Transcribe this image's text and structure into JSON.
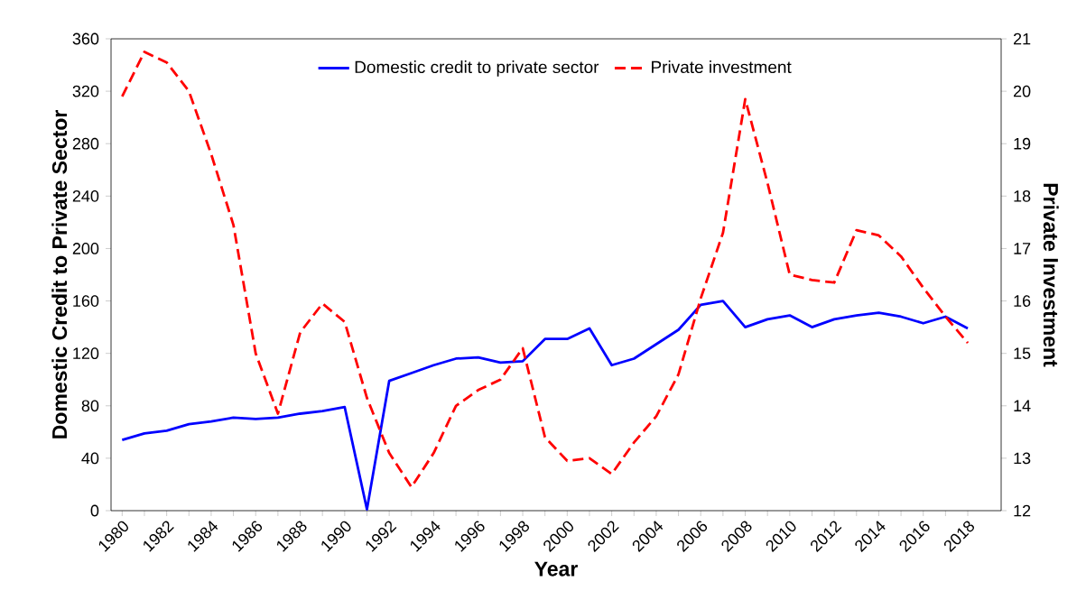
{
  "chart_data": {
    "type": "line",
    "xlabel": "Year",
    "ylabel": "Domestic Credit to Private Sector",
    "y2label": "Private Investment",
    "categories": [
      "1980",
      null,
      "1982",
      null,
      "1984",
      null,
      "1986",
      null,
      "1988",
      null,
      "1990",
      null,
      "1992",
      null,
      "1994",
      null,
      "1996",
      null,
      "1998",
      null,
      "2000",
      null,
      "2002",
      null,
      "2004",
      null,
      "2006",
      null,
      "2008",
      null,
      "2010",
      null,
      "2012",
      null,
      "2014",
      null,
      "2016",
      null,
      "2018"
    ],
    "series": [
      {
        "name": "Domestic credit to private sector",
        "color": "#0000ff",
        "line_style": "solid",
        "values": [
          54,
          59,
          61,
          66,
          68,
          71,
          70,
          71,
          74,
          76,
          79,
          1,
          99,
          105,
          111,
          116,
          117,
          113,
          114,
          131,
          131,
          139,
          111,
          116,
          127,
          138,
          157,
          160,
          140,
          146,
          149,
          140,
          146,
          149,
          151,
          148,
          143,
          148,
          139
        ]
      },
      {
        "name": "Private investment",
        "color": "#ff0000",
        "line_style": "dashed",
        "axis": "y2",
        "values": [
          19.9,
          20.75,
          20.55,
          20.0,
          18.8,
          17.45,
          15.0,
          13.85,
          15.4,
          15.95,
          15.6,
          14.15,
          13.1,
          12.45,
          13.1,
          14.0,
          14.3,
          14.5,
          15.1,
          13.4,
          12.95,
          13.0,
          12.7,
          13.3,
          13.8,
          14.6,
          16.05,
          17.3,
          19.85,
          18.25,
          16.5,
          16.4,
          16.35,
          17.35,
          17.25,
          16.85,
          16.25,
          15.7,
          15.2
        ]
      }
    ],
    "ylim": [
      0,
      360
    ],
    "yticks": [
      0,
      40,
      80,
      120,
      160,
      200,
      240,
      280,
      320,
      360
    ],
    "y2lim": [
      12,
      21
    ],
    "y2ticks": [
      12,
      13,
      14,
      15,
      16,
      17,
      18,
      19,
      20,
      21
    ],
    "legend": "top"
  }
}
